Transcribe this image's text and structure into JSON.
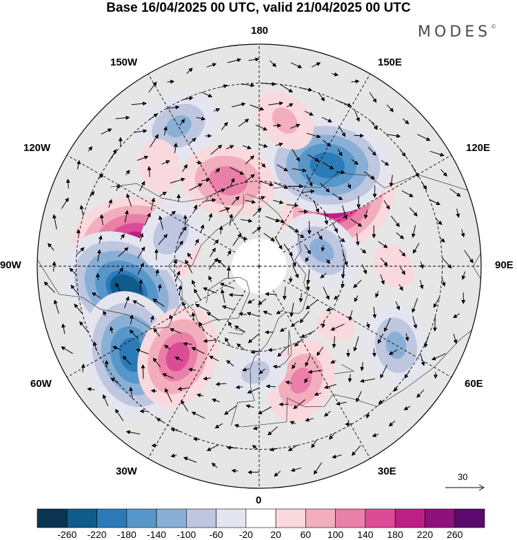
{
  "title": "Base 16/04/2025 00 UTC, valid 21/04/2025 00 UTC",
  "logo": "MODES",
  "logo_mark": "©",
  "longitude_labels": {
    "lon_180": "180",
    "lon_150E": "150E",
    "lon_120E": "120E",
    "lon_90E": "90E",
    "lon_60E": "60E",
    "lon_30E": "30E",
    "lon_0": "0",
    "lon_30W": "30W",
    "lon_60W": "60W",
    "lon_90W": "90W",
    "lon_120W": "120W",
    "lon_150W": "150W"
  },
  "wind_scale": {
    "label": "30",
    "units_value": 30
  },
  "colorbar": {
    "labels": [
      "-260",
      "-220",
      "-180",
      "-140",
      "-100",
      "-60",
      "-20",
      "20",
      "60",
      "100",
      "140",
      "180",
      "220",
      "260"
    ],
    "colors": [
      "#0b3352",
      "#0f5b8c",
      "#2b7bb9",
      "#5796c9",
      "#8aafd6",
      "#bec6e0",
      "#e5e5ef",
      "#ffffff",
      "#f9d9dd",
      "#f2aebd",
      "#ea7fa8",
      "#dc4c96",
      "#bd1f85",
      "#8e117c",
      "#5a0b6d"
    ]
  },
  "anomaly_centers": [
    {
      "lon": -100,
      "lat": 47,
      "value": 200
    },
    {
      "lon": -80,
      "lat": 44,
      "value": -220
    },
    {
      "lon": -55,
      "lat": 38,
      "value": -200
    },
    {
      "lon": -42,
      "lat": 48,
      "value": 140
    },
    {
      "lon": 128,
      "lat": 55,
      "value": 180
    },
    {
      "lon": 146,
      "lat": 48,
      "value": -200
    },
    {
      "lon": 104,
      "lat": 67,
      "value": -100
    },
    {
      "lon": 60,
      "lat": 37,
      "value": -100
    },
    {
      "lon": 20,
      "lat": 48,
      "value": 100
    },
    {
      "lon": -150,
      "lat": 36,
      "value": -100
    },
    {
      "lon": -160,
      "lat": 58,
      "value": 120
    },
    {
      "lon": 170,
      "lat": 40,
      "value": 60
    },
    {
      "lon": -135,
      "lat": 42,
      "value": 40
    },
    {
      "lon": -110,
      "lat": 57,
      "value": -80
    },
    {
      "lon": -2,
      "lat": 53,
      "value": -60
    },
    {
      "lon": 52,
      "lat": 56,
      "value": 20
    },
    {
      "lon": 90,
      "lat": 44,
      "value": 30
    }
  ]
}
